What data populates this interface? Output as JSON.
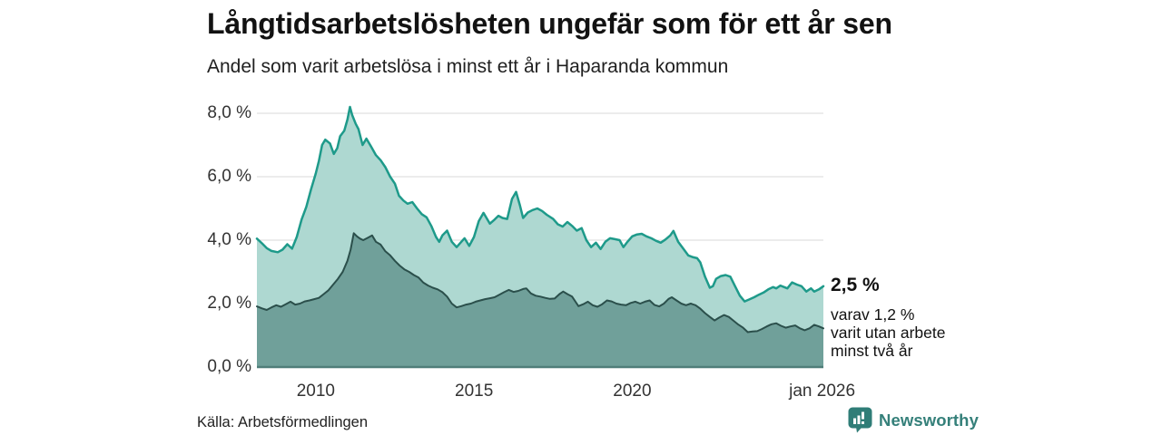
{
  "header": {
    "title": "Långtidsarbetslösheten ungefär som för ett år sen",
    "subtitle": "Andel som varit arbetslösa i minst ett år i Haparanda kommun"
  },
  "chart_data": {
    "type": "area",
    "title": "Långtidsarbetslösheten ungefär som för ett år sen",
    "subtitle": "Andel som varit arbetslösa i minst ett år i Haparanda kommun",
    "xlim": [
      2008.14,
      2026.04
    ],
    "ylim": [
      0,
      8.57
    ],
    "grid": true,
    "colors": {
      "gridline": "#dadada",
      "baseline": "#4f7e79",
      "series1_line": "#1e9a8a",
      "series1_fill": "#aed8d1",
      "series2_line": "#2b4f4b",
      "series2_fill": "#70a09a"
    },
    "y_axis": {
      "ticks": [
        {
          "label": "8,0 %",
          "value": 8
        },
        {
          "label": "6,0 %",
          "value": 6
        },
        {
          "label": "4,0 %",
          "value": 4
        },
        {
          "label": "2,0 %",
          "value": 2
        },
        {
          "label": "0,0 %",
          "value": 0
        }
      ]
    },
    "x_axis": {
      "ticks": [
        {
          "label": "2010",
          "year": 2010
        },
        {
          "label": "2015",
          "year": 2015
        },
        {
          "label": "2020",
          "year": 2020
        },
        {
          "label": "jan 2026",
          "year": 2026.0
        }
      ]
    },
    "series": [
      {
        "name": "Andel arbetslösa minst ett år",
        "color": "#1e9a8a",
        "fill": "#aed8d1",
        "width": 2.5,
        "points": [
          [
            2008.14,
            4.05
          ],
          [
            2008.3,
            3.9
          ],
          [
            2008.45,
            3.75
          ],
          [
            2008.6,
            3.66
          ],
          [
            2008.8,
            3.62
          ],
          [
            2008.95,
            3.7
          ],
          [
            2009.1,
            3.87
          ],
          [
            2009.25,
            3.73
          ],
          [
            2009.4,
            4.1
          ],
          [
            2009.55,
            4.65
          ],
          [
            2009.7,
            5.05
          ],
          [
            2009.85,
            5.6
          ],
          [
            2010.0,
            6.1
          ],
          [
            2010.1,
            6.5
          ],
          [
            2010.2,
            7.0
          ],
          [
            2010.3,
            7.17
          ],
          [
            2010.45,
            7.05
          ],
          [
            2010.57,
            6.72
          ],
          [
            2010.68,
            6.9
          ],
          [
            2010.77,
            7.28
          ],
          [
            2010.9,
            7.45
          ],
          [
            2011.0,
            7.8
          ],
          [
            2011.08,
            8.2
          ],
          [
            2011.15,
            7.95
          ],
          [
            2011.26,
            7.67
          ],
          [
            2011.35,
            7.5
          ],
          [
            2011.48,
            7.0
          ],
          [
            2011.6,
            7.2
          ],
          [
            2011.75,
            6.95
          ],
          [
            2011.9,
            6.68
          ],
          [
            2012.05,
            6.52
          ],
          [
            2012.2,
            6.3
          ],
          [
            2012.35,
            6.0
          ],
          [
            2012.5,
            5.78
          ],
          [
            2012.63,
            5.4
          ],
          [
            2012.77,
            5.25
          ],
          [
            2012.9,
            5.15
          ],
          [
            2013.05,
            5.2
          ],
          [
            2013.2,
            5.0
          ],
          [
            2013.35,
            4.82
          ],
          [
            2013.5,
            4.72
          ],
          [
            2013.65,
            4.45
          ],
          [
            2013.8,
            4.1
          ],
          [
            2013.9,
            3.95
          ],
          [
            2014.0,
            4.15
          ],
          [
            2014.15,
            4.3
          ],
          [
            2014.3,
            3.95
          ],
          [
            2014.45,
            3.78
          ],
          [
            2014.6,
            3.95
          ],
          [
            2014.7,
            4.06
          ],
          [
            2014.85,
            3.82
          ],
          [
            2015.0,
            4.1
          ],
          [
            2015.15,
            4.6
          ],
          [
            2015.3,
            4.86
          ],
          [
            2015.5,
            4.52
          ],
          [
            2015.65,
            4.65
          ],
          [
            2015.77,
            4.77
          ],
          [
            2015.9,
            4.7
          ],
          [
            2016.05,
            4.67
          ],
          [
            2016.2,
            5.3
          ],
          [
            2016.33,
            5.52
          ],
          [
            2016.45,
            5.1
          ],
          [
            2016.55,
            4.7
          ],
          [
            2016.7,
            4.87
          ],
          [
            2016.85,
            4.95
          ],
          [
            2017.0,
            5.0
          ],
          [
            2017.15,
            4.92
          ],
          [
            2017.3,
            4.8
          ],
          [
            2017.5,
            4.67
          ],
          [
            2017.65,
            4.5
          ],
          [
            2017.8,
            4.43
          ],
          [
            2017.95,
            4.57
          ],
          [
            2018.1,
            4.45
          ],
          [
            2018.25,
            4.3
          ],
          [
            2018.4,
            4.38
          ],
          [
            2018.55,
            4.0
          ],
          [
            2018.7,
            3.78
          ],
          [
            2018.85,
            3.92
          ],
          [
            2019.0,
            3.72
          ],
          [
            2019.15,
            3.95
          ],
          [
            2019.3,
            4.06
          ],
          [
            2019.45,
            4.03
          ],
          [
            2019.6,
            4.0
          ],
          [
            2019.72,
            3.78
          ],
          [
            2019.85,
            3.95
          ],
          [
            2020.0,
            4.12
          ],
          [
            2020.15,
            4.18
          ],
          [
            2020.3,
            4.2
          ],
          [
            2020.45,
            4.12
          ],
          [
            2020.6,
            4.06
          ],
          [
            2020.75,
            3.98
          ],
          [
            2020.9,
            3.92
          ],
          [
            2021.05,
            4.02
          ],
          [
            2021.2,
            4.15
          ],
          [
            2021.3,
            4.29
          ],
          [
            2021.45,
            3.95
          ],
          [
            2021.6,
            3.75
          ],
          [
            2021.77,
            3.52
          ],
          [
            2021.9,
            3.47
          ],
          [
            2022.05,
            3.43
          ],
          [
            2022.15,
            3.3
          ],
          [
            2022.3,
            2.85
          ],
          [
            2022.45,
            2.5
          ],
          [
            2022.55,
            2.55
          ],
          [
            2022.65,
            2.78
          ],
          [
            2022.8,
            2.87
          ],
          [
            2022.95,
            2.9
          ],
          [
            2023.1,
            2.85
          ],
          [
            2023.25,
            2.55
          ],
          [
            2023.4,
            2.25
          ],
          [
            2023.55,
            2.07
          ],
          [
            2023.7,
            2.13
          ],
          [
            2023.85,
            2.2
          ],
          [
            2024.0,
            2.28
          ],
          [
            2024.15,
            2.35
          ],
          [
            2024.3,
            2.45
          ],
          [
            2024.45,
            2.52
          ],
          [
            2024.55,
            2.48
          ],
          [
            2024.68,
            2.57
          ],
          [
            2024.8,
            2.52
          ],
          [
            2024.9,
            2.48
          ],
          [
            2025.05,
            2.67
          ],
          [
            2025.2,
            2.6
          ],
          [
            2025.35,
            2.55
          ],
          [
            2025.5,
            2.38
          ],
          [
            2025.65,
            2.48
          ],
          [
            2025.75,
            2.38
          ],
          [
            2025.9,
            2.45
          ],
          [
            2026.04,
            2.55
          ]
        ]
      },
      {
        "name": "Andel utan arbete minst två år",
        "color": "#2b4f4b",
        "fill": "#70a09a",
        "width": 2,
        "points": [
          [
            2008.14,
            1.91
          ],
          [
            2008.3,
            1.85
          ],
          [
            2008.45,
            1.8
          ],
          [
            2008.6,
            1.88
          ],
          [
            2008.75,
            1.95
          ],
          [
            2008.9,
            1.9
          ],
          [
            2009.05,
            1.98
          ],
          [
            2009.2,
            2.06
          ],
          [
            2009.35,
            1.97
          ],
          [
            2009.5,
            2.0
          ],
          [
            2009.65,
            2.07
          ],
          [
            2009.8,
            2.1
          ],
          [
            2009.95,
            2.14
          ],
          [
            2010.1,
            2.18
          ],
          [
            2010.25,
            2.3
          ],
          [
            2010.4,
            2.42
          ],
          [
            2010.55,
            2.6
          ],
          [
            2010.7,
            2.78
          ],
          [
            2010.85,
            3.0
          ],
          [
            2011.0,
            3.35
          ],
          [
            2011.1,
            3.7
          ],
          [
            2011.2,
            4.22
          ],
          [
            2011.3,
            4.12
          ],
          [
            2011.4,
            4.05
          ],
          [
            2011.5,
            4.0
          ],
          [
            2011.65,
            4.08
          ],
          [
            2011.78,
            4.15
          ],
          [
            2011.9,
            3.95
          ],
          [
            2012.05,
            3.86
          ],
          [
            2012.2,
            3.65
          ],
          [
            2012.35,
            3.52
          ],
          [
            2012.5,
            3.35
          ],
          [
            2012.65,
            3.2
          ],
          [
            2012.8,
            3.08
          ],
          [
            2012.95,
            3.0
          ],
          [
            2013.1,
            2.9
          ],
          [
            2013.25,
            2.82
          ],
          [
            2013.4,
            2.66
          ],
          [
            2013.55,
            2.57
          ],
          [
            2013.7,
            2.5
          ],
          [
            2013.85,
            2.45
          ],
          [
            2014.0,
            2.36
          ],
          [
            2014.15,
            2.22
          ],
          [
            2014.3,
            2.0
          ],
          [
            2014.45,
            1.88
          ],
          [
            2014.6,
            1.92
          ],
          [
            2014.75,
            1.97
          ],
          [
            2014.9,
            2.0
          ],
          [
            2015.05,
            2.06
          ],
          [
            2015.2,
            2.1
          ],
          [
            2015.35,
            2.14
          ],
          [
            2015.5,
            2.17
          ],
          [
            2015.65,
            2.2
          ],
          [
            2015.8,
            2.28
          ],
          [
            2015.95,
            2.36
          ],
          [
            2016.1,
            2.43
          ],
          [
            2016.25,
            2.37
          ],
          [
            2016.4,
            2.4
          ],
          [
            2016.55,
            2.46
          ],
          [
            2016.65,
            2.48
          ],
          [
            2016.8,
            2.32
          ],
          [
            2016.95,
            2.25
          ],
          [
            2017.1,
            2.22
          ],
          [
            2017.25,
            2.18
          ],
          [
            2017.4,
            2.15
          ],
          [
            2017.55,
            2.16
          ],
          [
            2017.7,
            2.3
          ],
          [
            2017.82,
            2.38
          ],
          [
            2017.95,
            2.3
          ],
          [
            2018.1,
            2.22
          ],
          [
            2018.3,
            1.92
          ],
          [
            2018.45,
            1.98
          ],
          [
            2018.6,
            2.06
          ],
          [
            2018.75,
            1.95
          ],
          [
            2018.9,
            1.9
          ],
          [
            2019.05,
            1.98
          ],
          [
            2019.2,
            2.1
          ],
          [
            2019.35,
            2.07
          ],
          [
            2019.5,
            2.0
          ],
          [
            2019.65,
            1.97
          ],
          [
            2019.8,
            1.95
          ],
          [
            2019.95,
            2.02
          ],
          [
            2020.1,
            2.06
          ],
          [
            2020.25,
            2.0
          ],
          [
            2020.4,
            2.06
          ],
          [
            2020.55,
            2.1
          ],
          [
            2020.7,
            1.96
          ],
          [
            2020.85,
            1.91
          ],
          [
            2021.0,
            2.0
          ],
          [
            2021.15,
            2.15
          ],
          [
            2021.25,
            2.2
          ],
          [
            2021.4,
            2.1
          ],
          [
            2021.55,
            2.0
          ],
          [
            2021.7,
            1.95
          ],
          [
            2021.85,
            2.0
          ],
          [
            2022.0,
            1.95
          ],
          [
            2022.15,
            1.84
          ],
          [
            2022.3,
            1.7
          ],
          [
            2022.45,
            1.58
          ],
          [
            2022.6,
            1.47
          ],
          [
            2022.75,
            1.56
          ],
          [
            2022.9,
            1.64
          ],
          [
            2023.05,
            1.58
          ],
          [
            2023.2,
            1.46
          ],
          [
            2023.35,
            1.34
          ],
          [
            2023.5,
            1.24
          ],
          [
            2023.65,
            1.1
          ],
          [
            2023.8,
            1.12
          ],
          [
            2023.95,
            1.13
          ],
          [
            2024.1,
            1.2
          ],
          [
            2024.25,
            1.28
          ],
          [
            2024.4,
            1.35
          ],
          [
            2024.55,
            1.38
          ],
          [
            2024.7,
            1.3
          ],
          [
            2024.85,
            1.24
          ],
          [
            2025.0,
            1.28
          ],
          [
            2025.15,
            1.31
          ],
          [
            2025.3,
            1.22
          ],
          [
            2025.45,
            1.16
          ],
          [
            2025.6,
            1.22
          ],
          [
            2025.75,
            1.33
          ],
          [
            2025.9,
            1.28
          ],
          [
            2026.04,
            1.22
          ]
        ]
      }
    ],
    "annotations": {
      "value_label": "2,5 %",
      "sub_label": "varav 1,2 %\nvarit utan arbete\nminst två år"
    }
  },
  "footer": {
    "source": "Källa: Arbetsförmedlingen",
    "brand": "Newsworthy"
  }
}
